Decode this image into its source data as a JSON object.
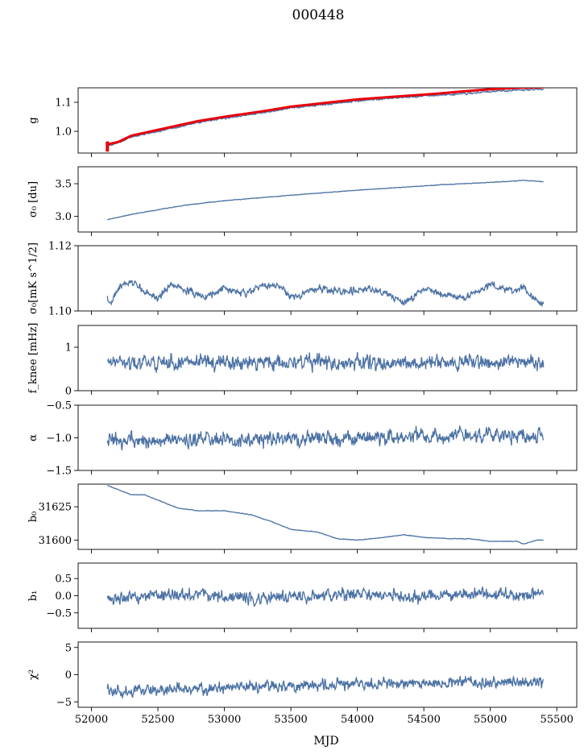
{
  "figure": {
    "title": "000448",
    "xlabel": "MJD"
  },
  "chart_data": {
    "type": "line",
    "shared_x": {
      "label": "MJD",
      "range": [
        51900,
        55650
      ],
      "ticks": [
        52000,
        52500,
        53000,
        53500,
        54000,
        54500,
        55000,
        55500
      ],
      "tick_labels": [
        "52000",
        "52500",
        "53000",
        "53500",
        "54000",
        "54500",
        "55000",
        "55500"
      ]
    },
    "series_color": "#4c72a4",
    "fit_color": "#e8000b",
    "panels": [
      {
        "id": "g",
        "ylabel": "g",
        "ylim": [
          0.925,
          1.15
        ],
        "yticks": [
          1.0,
          1.1
        ],
        "ytick_labels": [
          "1.0",
          "1.1"
        ],
        "noise": 0.002,
        "curve": [
          [
            52120,
            0.95
          ],
          [
            52200,
            0.96
          ],
          [
            52300,
            0.98
          ],
          [
            52600,
            1.01
          ],
          [
            52800,
            1.03
          ],
          [
            53000,
            1.045
          ],
          [
            53300,
            1.065
          ],
          [
            53500,
            1.08
          ],
          [
            53800,
            1.095
          ],
          [
            54000,
            1.105
          ],
          [
            54300,
            1.115
          ],
          [
            54600,
            1.125
          ],
          [
            54800,
            1.13
          ],
          [
            55000,
            1.137
          ],
          [
            55200,
            1.142
          ],
          [
            55400,
            1.145
          ]
        ],
        "fit": [
          [
            52120,
            0.955
          ],
          [
            52200,
            0.963
          ],
          [
            52300,
            0.985
          ],
          [
            52600,
            1.015
          ],
          [
            52800,
            1.035
          ],
          [
            53000,
            1.05
          ],
          [
            53300,
            1.07
          ],
          [
            53500,
            1.085
          ],
          [
            53800,
            1.1
          ],
          [
            54000,
            1.11
          ],
          [
            54300,
            1.12
          ],
          [
            54600,
            1.13
          ],
          [
            54800,
            1.138
          ],
          [
            55000,
            1.145
          ],
          [
            55200,
            1.15
          ],
          [
            55410,
            1.152
          ]
        ],
        "fit_drop": [
          [
            52120,
            0.93
          ],
          [
            52120,
            0.965
          ]
        ]
      },
      {
        "id": "sigma0_du",
        "ylabel": "σ₀ [du]",
        "ylim": [
          2.76,
          3.76
        ],
        "yticks": [
          3.0,
          3.5
        ],
        "ytick_labels": [
          "3.0",
          "3.5"
        ],
        "noise": 0.003,
        "curve": [
          [
            52120,
            2.95
          ],
          [
            52300,
            3.03
          ],
          [
            52500,
            3.1
          ],
          [
            52700,
            3.17
          ],
          [
            53000,
            3.24
          ],
          [
            53300,
            3.29
          ],
          [
            53600,
            3.34
          ],
          [
            54000,
            3.4
          ],
          [
            54300,
            3.44
          ],
          [
            54600,
            3.48
          ],
          [
            55000,
            3.52
          ],
          [
            55250,
            3.55
          ],
          [
            55400,
            3.53
          ]
        ]
      },
      {
        "id": "sigma0_mKs",
        "ylabel": "σ₀[mK s^1/2]",
        "ylim": [
          1.1,
          1.12
        ],
        "yticks": [
          1.1,
          1.12
        ],
        "ytick_labels": [
          "1.10",
          "1.12"
        ],
        "noise": 0.0007,
        "curve": [
          [
            52120,
            1.104
          ],
          [
            52150,
            1.102
          ],
          [
            52200,
            1.107
          ],
          [
            52300,
            1.109
          ],
          [
            52400,
            1.106
          ],
          [
            52500,
            1.104
          ],
          [
            52600,
            1.108
          ],
          [
            52750,
            1.106
          ],
          [
            52850,
            1.104
          ],
          [
            53000,
            1.107
          ],
          [
            53150,
            1.105
          ],
          [
            53300,
            1.108
          ],
          [
            53450,
            1.107
          ],
          [
            53500,
            1.104
          ],
          [
            53700,
            1.107
          ],
          [
            53900,
            1.106
          ],
          [
            54100,
            1.107
          ],
          [
            54300,
            1.104
          ],
          [
            54350,
            1.102
          ],
          [
            54500,
            1.107
          ],
          [
            54650,
            1.105
          ],
          [
            54800,
            1.104
          ],
          [
            55000,
            1.108
          ],
          [
            55150,
            1.106
          ],
          [
            55250,
            1.107
          ],
          [
            55350,
            1.103
          ],
          [
            55400,
            1.102
          ]
        ]
      },
      {
        "id": "fknee",
        "ylabel": "f_knee [mHz]",
        "ylim": [
          0,
          1.5
        ],
        "yticks": [
          0,
          1
        ],
        "ytick_labels": [
          "0",
          "1"
        ],
        "noise": 0.11,
        "curve": [
          [
            52120,
            0.65
          ],
          [
            55400,
            0.65
          ]
        ]
      },
      {
        "id": "alpha",
        "ylabel": "α",
        "ylim": [
          -1.5,
          -0.5
        ],
        "yticks": [
          -1.5,
          -1.0,
          -0.5
        ],
        "ytick_labels": [
          "−1.5",
          "−1.0",
          "−0.5"
        ],
        "noise": 0.075,
        "curve": [
          [
            52120,
            -1.05
          ],
          [
            53800,
            -1.02
          ],
          [
            54500,
            -0.97
          ],
          [
            55400,
            -0.96
          ]
        ]
      },
      {
        "id": "b0",
        "ylabel": "b₀",
        "ylim": [
          31593,
          31642
        ],
        "yticks": [
          31600,
          31625
        ],
        "ytick_labels": [
          "31600",
          "31625"
        ],
        "noise": 0.15,
        "curve": [
          [
            52120,
            31641
          ],
          [
            52300,
            31634
          ],
          [
            52400,
            31634
          ],
          [
            52500,
            31630
          ],
          [
            52650,
            31624
          ],
          [
            52800,
            31622
          ],
          [
            53000,
            31622
          ],
          [
            53200,
            31619
          ],
          [
            53350,
            31614
          ],
          [
            53500,
            31608
          ],
          [
            53700,
            31606
          ],
          [
            53850,
            31601
          ],
          [
            54000,
            31600
          ],
          [
            54200,
            31602
          ],
          [
            54350,
            31604
          ],
          [
            54500,
            31602
          ],
          [
            54700,
            31601
          ],
          [
            54850,
            31601
          ],
          [
            55000,
            31599
          ],
          [
            55200,
            31599
          ],
          [
            55250,
            31597
          ],
          [
            55350,
            31600
          ],
          [
            55400,
            31600
          ]
        ]
      },
      {
        "id": "b1",
        "ylabel": "b₁",
        "ylim": [
          -0.95,
          0.95
        ],
        "yticks": [
          -0.5,
          0.0,
          0.5
        ],
        "ytick_labels": [
          "−0.5",
          "0.0",
          "0.5"
        ],
        "noise": 0.12,
        "curve": [
          [
            52120,
            -0.15
          ],
          [
            52400,
            -0.05
          ],
          [
            52700,
            0.05
          ],
          [
            53000,
            -0.05
          ],
          [
            53500,
            -0.05
          ],
          [
            54000,
            0.05
          ],
          [
            54500,
            -0.05
          ],
          [
            55000,
            0.05
          ],
          [
            55400,
            0.0
          ]
        ]
      },
      {
        "id": "chi2",
        "ylabel": "χ²",
        "ylim": [
          -6,
          6
        ],
        "yticks": [
          -5,
          0,
          5
        ],
        "ytick_labels": [
          "−5",
          "0",
          "5"
        ],
        "noise": 0.7,
        "curve": [
          [
            52120,
            -3.0
          ],
          [
            52500,
            -2.8
          ],
          [
            53000,
            -2.5
          ],
          [
            53500,
            -2.0
          ],
          [
            54000,
            -1.7
          ],
          [
            54500,
            -1.6
          ],
          [
            55000,
            -1.5
          ],
          [
            55400,
            -1.3
          ]
        ]
      }
    ]
  }
}
